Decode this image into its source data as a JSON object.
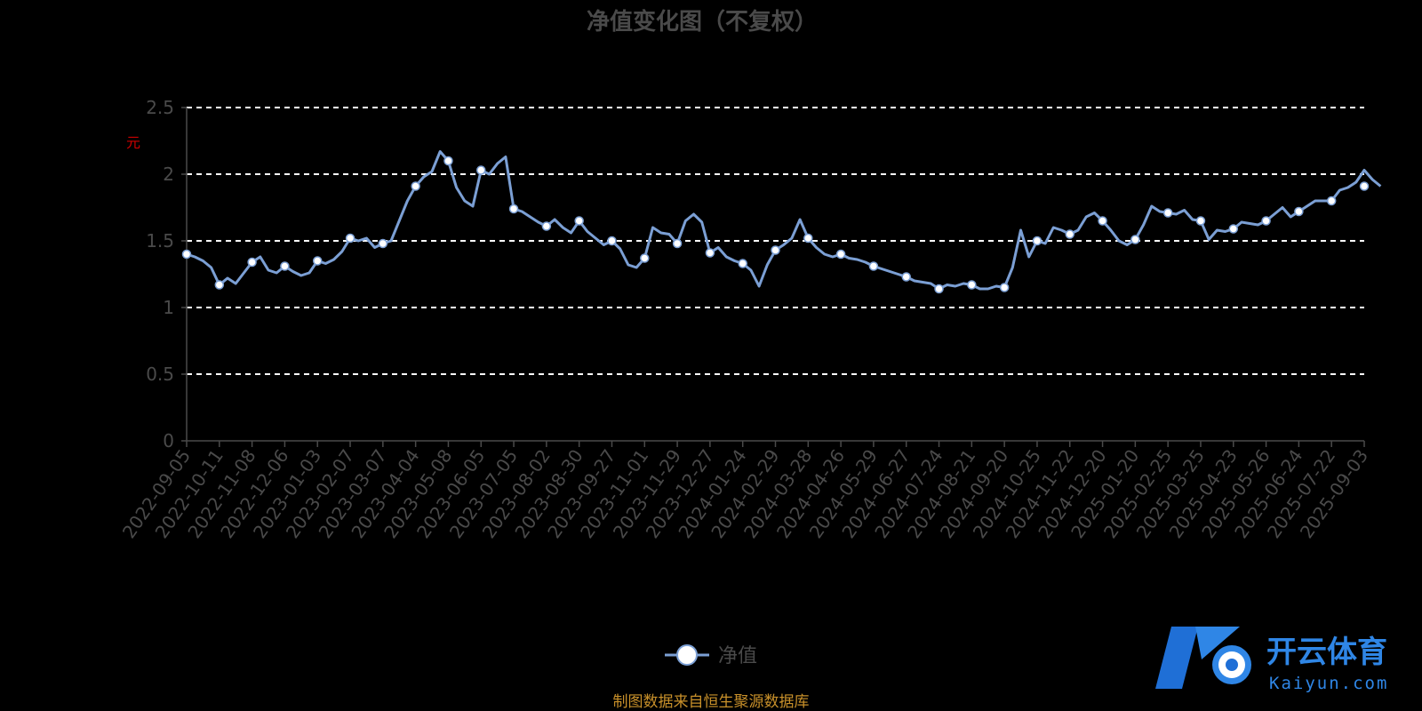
{
  "chart_data": {
    "type": "line",
    "title": "净值变化图（不复权）",
    "xlabel": "",
    "ylabel": "元",
    "ylim": [
      0,
      2.5
    ],
    "yticks": [
      0,
      0.5,
      1,
      1.5,
      2,
      2.5
    ],
    "ytick_labels": [
      "0",
      "0.5",
      "1",
      "1.5",
      "2",
      "2.5"
    ],
    "grid": true,
    "grid_style": "dashed",
    "legend_position": "bottom-center",
    "x_tick_labels": [
      "2022-09-05",
      "2022-10-11",
      "2022-11-08",
      "2022-12-06",
      "2023-01-03",
      "2023-02-07",
      "2023-03-07",
      "2023-04-04",
      "2023-05-08",
      "2023-06-05",
      "2023-07-05",
      "2023-08-02",
      "2023-08-30",
      "2023-09-27",
      "2023-11-01",
      "2023-11-29",
      "2023-12-27",
      "2024-01-24",
      "2024-02-29",
      "2024-03-28",
      "2024-04-26",
      "2024-05-29",
      "2024-06-27",
      "2024-07-24",
      "2024-08-21",
      "2024-09-20",
      "2024-10-25",
      "2024-11-22",
      "2024-12-20",
      "2025-01-20",
      "2025-02-25",
      "2025-03-25",
      "2025-04-23",
      "2025-05-26",
      "2025-06-24",
      "2025-07-22",
      "2025-09-03"
    ],
    "series": [
      {
        "name": "净值",
        "color": "#7b9fd4",
        "x": [
          "2022-09-05",
          "2022-10-11",
          "2022-11-08",
          "2022-12-06",
          "2023-01-03",
          "2023-02-07",
          "2023-03-07",
          "2023-04-04",
          "2023-05-08",
          "2023-06-05",
          "2023-07-05",
          "2023-08-02",
          "2023-08-30",
          "2023-09-27",
          "2023-11-01",
          "2023-11-29",
          "2023-12-27",
          "2024-01-24",
          "2024-02-29",
          "2024-03-28",
          "2024-04-26",
          "2024-05-29",
          "2024-06-27",
          "2024-07-24",
          "2024-08-21",
          "2024-09-20",
          "2024-10-25",
          "2024-11-22",
          "2024-12-20",
          "2025-01-20",
          "2025-02-25",
          "2025-03-25",
          "2025-04-23",
          "2025-05-26",
          "2025-06-24",
          "2025-07-22",
          "2025-09-03"
        ],
        "values": [
          1.4,
          1.17,
          1.34,
          1.31,
          1.35,
          1.52,
          1.48,
          1.91,
          2.1,
          2.03,
          1.74,
          1.61,
          1.65,
          1.5,
          1.37,
          1.48,
          1.41,
          1.33,
          1.43,
          1.52,
          1.4,
          1.31,
          1.23,
          1.14,
          1.17,
          1.15,
          1.5,
          1.55,
          1.65,
          1.51,
          1.71,
          1.65,
          1.59,
          1.65,
          1.72,
          1.8,
          1.91
        ],
        "line_path": [
          [
            0,
            1.4
          ],
          [
            0.25,
            1.38
          ],
          [
            0.5,
            1.35
          ],
          [
            0.75,
            1.3
          ],
          [
            1,
            1.17
          ],
          [
            1.25,
            1.22
          ],
          [
            1.5,
            1.18
          ],
          [
            1.75,
            1.26
          ],
          [
            2,
            1.34
          ],
          [
            2.25,
            1.38
          ],
          [
            2.5,
            1.28
          ],
          [
            2.75,
            1.26
          ],
          [
            3,
            1.31
          ],
          [
            3.25,
            1.27
          ],
          [
            3.5,
            1.24
          ],
          [
            3.75,
            1.26
          ],
          [
            4,
            1.35
          ],
          [
            4.25,
            1.33
          ],
          [
            4.5,
            1.36
          ],
          [
            4.75,
            1.42
          ],
          [
            5,
            1.52
          ],
          [
            5.25,
            1.5
          ],
          [
            5.5,
            1.52
          ],
          [
            5.75,
            1.45
          ],
          [
            6,
            1.48
          ],
          [
            6.25,
            1.5
          ],
          [
            6.5,
            1.65
          ],
          [
            6.75,
            1.8
          ],
          [
            7,
            1.91
          ],
          [
            7.25,
            1.98
          ],
          [
            7.5,
            2.02
          ],
          [
            7.75,
            2.17
          ],
          [
            8,
            2.1
          ],
          [
            8.25,
            1.9
          ],
          [
            8.5,
            1.8
          ],
          [
            8.75,
            1.76
          ],
          [
            9,
            2.03
          ],
          [
            9.25,
            2.0
          ],
          [
            9.5,
            2.08
          ],
          [
            9.75,
            2.13
          ],
          [
            10,
            1.74
          ],
          [
            10.25,
            1.72
          ],
          [
            10.5,
            1.68
          ],
          [
            10.75,
            1.64
          ],
          [
            11,
            1.61
          ],
          [
            11.25,
            1.66
          ],
          [
            11.5,
            1.6
          ],
          [
            11.75,
            1.56
          ],
          [
            12,
            1.65
          ],
          [
            12.25,
            1.57
          ],
          [
            12.5,
            1.52
          ],
          [
            12.75,
            1.47
          ],
          [
            13,
            1.5
          ],
          [
            13.25,
            1.44
          ],
          [
            13.5,
            1.32
          ],
          [
            13.75,
            1.3
          ],
          [
            14,
            1.37
          ],
          [
            14.25,
            1.6
          ],
          [
            14.5,
            1.56
          ],
          [
            14.75,
            1.55
          ],
          [
            15,
            1.48
          ],
          [
            15.25,
            1.65
          ],
          [
            15.5,
            1.7
          ],
          [
            15.75,
            1.64
          ],
          [
            16,
            1.41
          ],
          [
            16.25,
            1.45
          ],
          [
            16.5,
            1.38
          ],
          [
            16.75,
            1.35
          ],
          [
            17,
            1.33
          ],
          [
            17.25,
            1.28
          ],
          [
            17.5,
            1.16
          ],
          [
            17.75,
            1.32
          ],
          [
            18,
            1.43
          ],
          [
            18.25,
            1.47
          ],
          [
            18.5,
            1.52
          ],
          [
            18.75,
            1.66
          ],
          [
            19,
            1.52
          ],
          [
            19.25,
            1.45
          ],
          [
            19.5,
            1.4
          ],
          [
            19.75,
            1.38
          ],
          [
            20,
            1.4
          ],
          [
            20.25,
            1.37
          ],
          [
            20.5,
            1.36
          ],
          [
            20.75,
            1.34
          ],
          [
            21,
            1.31
          ],
          [
            21.25,
            1.29
          ],
          [
            21.5,
            1.27
          ],
          [
            21.75,
            1.25
          ],
          [
            22,
            1.23
          ],
          [
            22.25,
            1.2
          ],
          [
            22.5,
            1.19
          ],
          [
            22.75,
            1.18
          ],
          [
            23,
            1.14
          ],
          [
            23.25,
            1.17
          ],
          [
            23.5,
            1.16
          ],
          [
            23.75,
            1.18
          ],
          [
            24,
            1.17
          ],
          [
            24.25,
            1.14
          ],
          [
            24.5,
            1.14
          ],
          [
            24.75,
            1.16
          ],
          [
            25,
            1.15
          ],
          [
            25.25,
            1.3
          ],
          [
            25.5,
            1.58
          ],
          [
            25.75,
            1.38
          ],
          [
            26,
            1.5
          ],
          [
            26.25,
            1.48
          ],
          [
            26.5,
            1.6
          ],
          [
            26.75,
            1.58
          ],
          [
            27,
            1.55
          ],
          [
            27.25,
            1.58
          ],
          [
            27.5,
            1.68
          ],
          [
            27.75,
            1.71
          ],
          [
            28,
            1.65
          ],
          [
            28.25,
            1.58
          ],
          [
            28.5,
            1.5
          ],
          [
            28.75,
            1.47
          ],
          [
            29,
            1.51
          ],
          [
            29.25,
            1.62
          ],
          [
            29.5,
            1.76
          ],
          [
            29.75,
            1.72
          ],
          [
            30,
            1.71
          ],
          [
            30.25,
            1.7
          ],
          [
            30.5,
            1.73
          ],
          [
            30.75,
            1.66
          ],
          [
            31,
            1.65
          ],
          [
            31.25,
            1.51
          ],
          [
            31.5,
            1.58
          ],
          [
            31.75,
            1.57
          ],
          [
            32,
            1.59
          ],
          [
            32.25,
            1.64
          ],
          [
            32.5,
            1.63
          ],
          [
            32.75,
            1.62
          ],
          [
            33,
            1.65
          ],
          [
            33.25,
            1.7
          ],
          [
            33.5,
            1.75
          ],
          [
            33.75,
            1.68
          ],
          [
            34,
            1.72
          ],
          [
            34.25,
            1.76
          ],
          [
            34.5,
            1.8
          ],
          [
            34.75,
            1.8
          ],
          [
            35,
            1.8
          ],
          [
            35.25,
            1.88
          ],
          [
            35.5,
            1.9
          ],
          [
            35.75,
            1.94
          ],
          [
            36,
            2.03
          ],
          [
            36.25,
            1.96
          ],
          [
            36.5,
            1.91
          ]
        ]
      }
    ],
    "source_note": "制图数据来自恒生聚源数据库"
  },
  "watermark": {
    "text_cn": "开云体育",
    "text_en": "Kaiyun.com",
    "color": "#2f86e6"
  }
}
